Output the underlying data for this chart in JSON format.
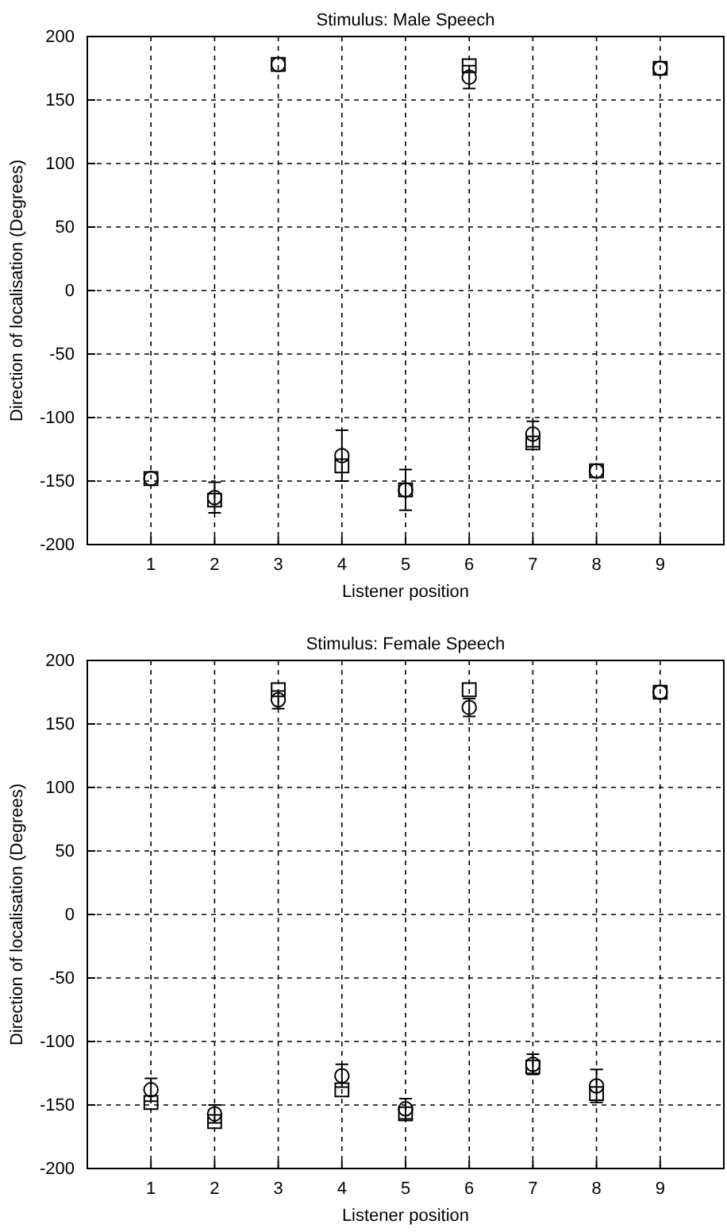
{
  "chart_data": [
    {
      "type": "scatter",
      "title": "Stimulus: Male Speech",
      "xlabel": "Listener position",
      "ylabel": "Direction of localisation (Degrees)",
      "x": [
        1,
        2,
        3,
        4,
        5,
        6,
        7,
        8,
        9
      ],
      "xlim": [
        0,
        10
      ],
      "xticks": [
        1,
        2,
        3,
        4,
        5,
        6,
        7,
        8,
        9
      ],
      "ylim": [
        -200,
        200
      ],
      "yticks": [
        -200,
        -150,
        -100,
        -50,
        0,
        50,
        100,
        150,
        200
      ],
      "grid": true,
      "series": [
        {
          "color": "#000000",
          "marker": "circle",
          "values": [
            -148,
            -163,
            178,
            -130,
            -157,
            168,
            -113,
            -142,
            175
          ],
          "errors": [
            null,
            12,
            null,
            20,
            16,
            9,
            10,
            null,
            null
          ]
        },
        {
          "color": "#000000",
          "marker": "square",
          "values": [
            -148,
            -165,
            178,
            -138,
            -157,
            177,
            -120,
            -142,
            175
          ]
        }
      ]
    },
    {
      "type": "scatter",
      "title": "Stimulus: Female Speech",
      "xlabel": "Listener position",
      "ylabel": "Direction of localisation (Degrees)",
      "x": [
        1,
        2,
        3,
        4,
        5,
        6,
        7,
        8,
        9
      ],
      "xlim": [
        0,
        10
      ],
      "xticks": [
        1,
        2,
        3,
        4,
        5,
        6,
        7,
        8,
        9
      ],
      "ylim": [
        -200,
        200
      ],
      "yticks": [
        -200,
        -150,
        -100,
        -50,
        0,
        50,
        100,
        150,
        200
      ],
      "grid": true,
      "series": [
        {
          "color": "#000000",
          "marker": "circle",
          "values": [
            -138,
            -157,
            169,
            -127,
            -153,
            163,
            -118,
            -135,
            175
          ],
          "errors": [
            9,
            7,
            7,
            9,
            8,
            7,
            8,
            13,
            null
          ]
        },
        {
          "color": "#000000",
          "marker": "square",
          "values": [
            -148,
            -163,
            177,
            -138,
            -157,
            177,
            -120,
            -141,
            175
          ]
        }
      ]
    }
  ]
}
